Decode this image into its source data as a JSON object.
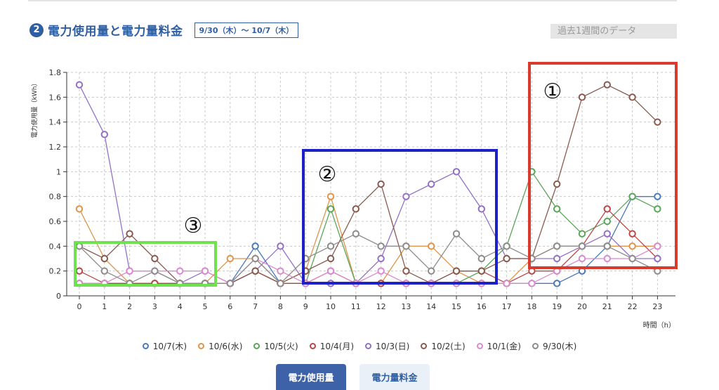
{
  "header": {
    "badge": "❷",
    "title": "電力使用量と電力量料金",
    "date_range": "9/30（木）～ 10/7（木）",
    "period": "過去1週間のデータ"
  },
  "buttons": {
    "usage": "電力使用量",
    "fee": "電力量料金"
  },
  "annotations": {
    "box1": "①",
    "box2": "②",
    "box3": "③"
  },
  "chart_data": {
    "type": "line",
    "ylabel": "電力使用量（kWh）",
    "xlabel": "時間（h）",
    "x": [
      0,
      1,
      2,
      3,
      4,
      5,
      6,
      7,
      8,
      9,
      10,
      11,
      12,
      13,
      14,
      15,
      16,
      17,
      18,
      19,
      20,
      21,
      22,
      23
    ],
    "ylim": [
      0,
      1.8
    ],
    "yticks": [
      0,
      0.2,
      0.4,
      0.6,
      0.8,
      1,
      1.2,
      1.4,
      1.6,
      1.8
    ],
    "ytick_labels": [
      "0",
      "0.2",
      "0.4",
      "0.6",
      "0.8",
      "1",
      "1.2",
      "1.4",
      "1.6",
      "1.8"
    ],
    "grid": true,
    "legend_position": "bottom",
    "series": [
      {
        "name": "10/7(木)",
        "color": "#4a7ab8",
        "values": [
          0.1,
          0.1,
          0.1,
          0.1,
          0.1,
          0.1,
          0.1,
          0.4,
          0.1,
          0.1,
          0.1,
          0.1,
          0.1,
          0.1,
          0.1,
          0.1,
          0.1,
          0.1,
          0.1,
          0.1,
          0.2,
          0.4,
          0.8,
          0.8
        ]
      },
      {
        "name": "10/6(水)",
        "color": "#e0944a",
        "values": [
          0.7,
          0.3,
          0.1,
          0.1,
          0.1,
          0.1,
          0.3,
          0.3,
          0.1,
          0.2,
          0.8,
          0.1,
          0.1,
          0.4,
          0.4,
          0.2,
          0.1,
          0.1,
          0.3,
          0.4,
          0.4,
          0.4,
          0.4,
          0.4
        ]
      },
      {
        "name": "10/5(火)",
        "color": "#5aa55a",
        "values": [
          0.1,
          0.1,
          0.1,
          0.1,
          0.1,
          0.1,
          0.1,
          0.2,
          0.1,
          0.1,
          0.7,
          0.1,
          0.1,
          0.1,
          0.1,
          0.1,
          0.2,
          0.4,
          1.0,
          0.7,
          0.5,
          0.6,
          0.8,
          0.7
        ]
      },
      {
        "name": "10/4(月)",
        "color": "#b84848",
        "values": [
          0.2,
          0.1,
          0.1,
          0.1,
          0.1,
          0.1,
          0.1,
          0.2,
          0.1,
          0.1,
          0.2,
          0.1,
          0.1,
          0.1,
          0.1,
          0.2,
          0.2,
          0.1,
          0.2,
          0.2,
          0.4,
          0.7,
          0.5,
          0.3
        ]
      },
      {
        "name": "10/3(日)",
        "color": "#9370c6",
        "values": [
          1.7,
          1.3,
          0.2,
          0.2,
          0.1,
          0.2,
          0.1,
          0.2,
          0.4,
          0.1,
          0.1,
          0.1,
          0.3,
          0.8,
          0.9,
          1.0,
          0.7,
          0.3,
          0.3,
          0.3,
          0.4,
          0.5,
          0.3,
          0.3
        ]
      },
      {
        "name": "10/2(土)",
        "color": "#8a5a4e",
        "values": [
          0.4,
          0.3,
          0.5,
          0.3,
          0.1,
          0.1,
          0.1,
          0.2,
          0.1,
          0.2,
          0.3,
          0.7,
          0.9,
          0.2,
          0.1,
          0.2,
          0.2,
          0.3,
          0.3,
          0.9,
          1.6,
          1.7,
          1.6,
          1.4
        ]
      },
      {
        "name": "10/1(金)",
        "color": "#da88d0",
        "values": [
          0.1,
          0.1,
          0.2,
          0.2,
          0.2,
          0.2,
          0.1,
          0.3,
          0.2,
          0.1,
          0.2,
          0.1,
          0.2,
          0.1,
          0.1,
          0.1,
          0.1,
          0.1,
          0.1,
          0.2,
          0.3,
          0.3,
          0.3,
          0.4
        ]
      },
      {
        "name": "9/30(木)",
        "color": "#8c8c8c",
        "values": [
          0.4,
          0.2,
          0.1,
          0.2,
          0.1,
          0.1,
          0.1,
          0.3,
          0.1,
          0.3,
          0.4,
          0.5,
          0.4,
          0.4,
          0.2,
          0.5,
          0.3,
          0.4,
          0.3,
          0.4,
          0.4,
          0.4,
          0.3,
          0.2
        ]
      }
    ]
  }
}
